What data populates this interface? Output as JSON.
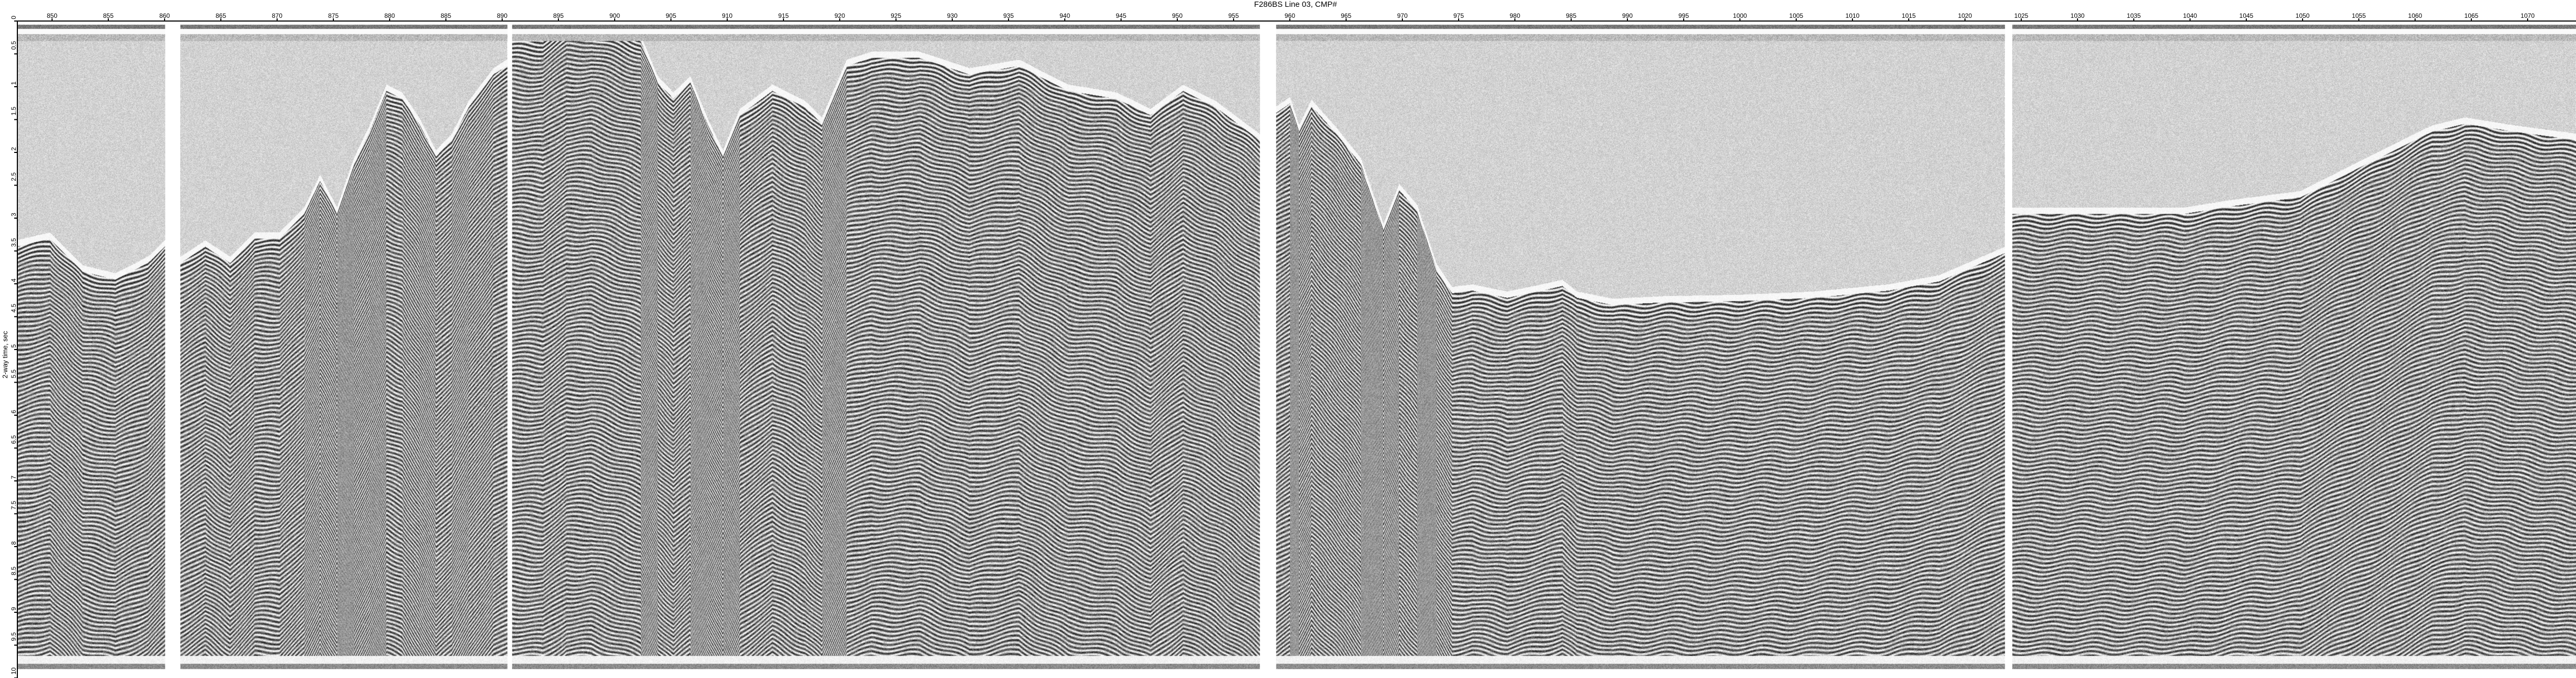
{
  "chart_data": {
    "type": "heatmap",
    "title": "F286BS Line 03, CMP#",
    "xlabel": "F286BS Line 03, CMP#",
    "ylabel": "2-way time, sec",
    "xlim": [
      846.8,
      1074.4
    ],
    "ylim": [
      0,
      10
    ],
    "y_inverted": true,
    "grid": false,
    "x_ticks": [
      "850",
      "855",
      "860",
      "865",
      "870",
      "875",
      "880",
      "885",
      "890",
      "895",
      "900",
      "905",
      "910",
      "915",
      "920",
      "925",
      "930",
      "935",
      "940",
      "945",
      "950",
      "955",
      "960",
      "965",
      "970",
      "975",
      "980",
      "985",
      "990",
      "995",
      "1000",
      "1005",
      "1010",
      "1015",
      "1020",
      "1025",
      "1030",
      "1035",
      "1040",
      "1045",
      "1050",
      "1055",
      "1060",
      "1065",
      "1070"
    ],
    "y_ticks": [
      "0",
      "0.5",
      "1",
      "1.5",
      "2",
      "2.5",
      "3",
      "3.5",
      "4",
      "4.5",
      "5",
      "5.5",
      "6",
      "6.5",
      "7",
      "7.5",
      "8",
      "8.5",
      "9",
      "9.5",
      "10"
    ],
    "colormap": "grayscale wiggle/variable-density",
    "panels": [
      {
        "cmp_range": [
          846.8,
          860.0
        ],
        "seafloor": [
          [
            846.8,
            3.43
          ],
          [
            849.8,
            3.31
          ],
          [
            852.7,
            3.81
          ],
          [
            855.6,
            3.93
          ],
          [
            858.5,
            3.68
          ],
          [
            860.0,
            3.43
          ]
        ]
      },
      {
        "cmp_range": [
          861.4,
          890.4
        ],
        "seafloor": [
          [
            861.4,
            3.68
          ],
          [
            863.6,
            3.43
          ],
          [
            865.8,
            3.68
          ],
          [
            868.0,
            3.31
          ],
          [
            870.2,
            3.31
          ],
          [
            872.4,
            2.93
          ],
          [
            873.8,
            2.43
          ],
          [
            875.3,
            2.93
          ],
          [
            876.8,
            2.18
          ],
          [
            878.2,
            1.68
          ],
          [
            879.7,
            1.06
          ],
          [
            881.1,
            1.18
          ],
          [
            882.6,
            1.56
          ],
          [
            884.1,
            2.06
          ],
          [
            885.5,
            1.81
          ],
          [
            887.0,
            1.31
          ],
          [
            889.2,
            0.81
          ],
          [
            890.4,
            0.68
          ]
        ]
      },
      {
        "cmp_range": [
          890.9,
          957.3
        ],
        "seafloor": [
          [
            890.9,
            0.31
          ],
          [
            893.6,
            0.31
          ],
          [
            895.7,
            0.06
          ],
          [
            897.9,
            0.06
          ],
          [
            900.1,
            0.18
          ],
          [
            902.3,
            0.31
          ],
          [
            903.8,
            0.93
          ],
          [
            905.2,
            1.18
          ],
          [
            906.7,
            0.93
          ],
          [
            908.2,
            1.56
          ],
          [
            909.6,
            2.06
          ],
          [
            911.1,
            1.43
          ],
          [
            914.0,
            1.06
          ],
          [
            916.9,
            1.31
          ],
          [
            918.4,
            1.56
          ],
          [
            920.6,
            0.68
          ],
          [
            922.8,
            0.56
          ],
          [
            927.1,
            0.56
          ],
          [
            931.5,
            0.81
          ],
          [
            935.9,
            0.68
          ],
          [
            940.3,
            1.06
          ],
          [
            944.6,
            1.18
          ],
          [
            947.6,
            1.43
          ],
          [
            950.5,
            1.06
          ],
          [
            953.4,
            1.31
          ],
          [
            957.3,
            1.81
          ]
        ]
      },
      {
        "cmp_range": [
          958.8,
          1023.5
        ],
        "seafloor": [
          [
            958.8,
            1.39
          ],
          [
            960.0,
            1.25
          ],
          [
            960.8,
            1.68
          ],
          [
            961.9,
            1.29
          ],
          [
            964.1,
            1.71
          ],
          [
            966.3,
            2.18
          ],
          [
            968.3,
            3.18
          ],
          [
            969.7,
            2.57
          ],
          [
            971.3,
            2.89
          ],
          [
            973.0,
            3.78
          ],
          [
            974.4,
            4.14
          ],
          [
            976.2,
            4.1
          ],
          [
            979.3,
            4.21
          ],
          [
            982.4,
            4.1
          ],
          [
            984.2,
            4.03
          ],
          [
            985.5,
            4.21
          ],
          [
            988.7,
            4.32
          ],
          [
            993.1,
            4.28
          ],
          [
            999.8,
            4.26
          ],
          [
            1006.5,
            4.21
          ],
          [
            1013.2,
            4.1
          ],
          [
            1017.7,
            3.96
          ],
          [
            1023.5,
            3.53
          ]
        ]
      },
      {
        "cmp_range": [
          1024.2,
          1074.4
        ],
        "seafloor": [
          [
            1024.2,
            2.93
          ],
          [
            1032.2,
            2.93
          ],
          [
            1039.5,
            2.93
          ],
          [
            1043.9,
            2.81
          ],
          [
            1049.8,
            2.68
          ],
          [
            1055.6,
            2.18
          ],
          [
            1061.5,
            1.68
          ],
          [
            1064.4,
            1.56
          ],
          [
            1068.8,
            1.68
          ],
          [
            1074.4,
            1.81
          ]
        ]
      }
    ]
  }
}
